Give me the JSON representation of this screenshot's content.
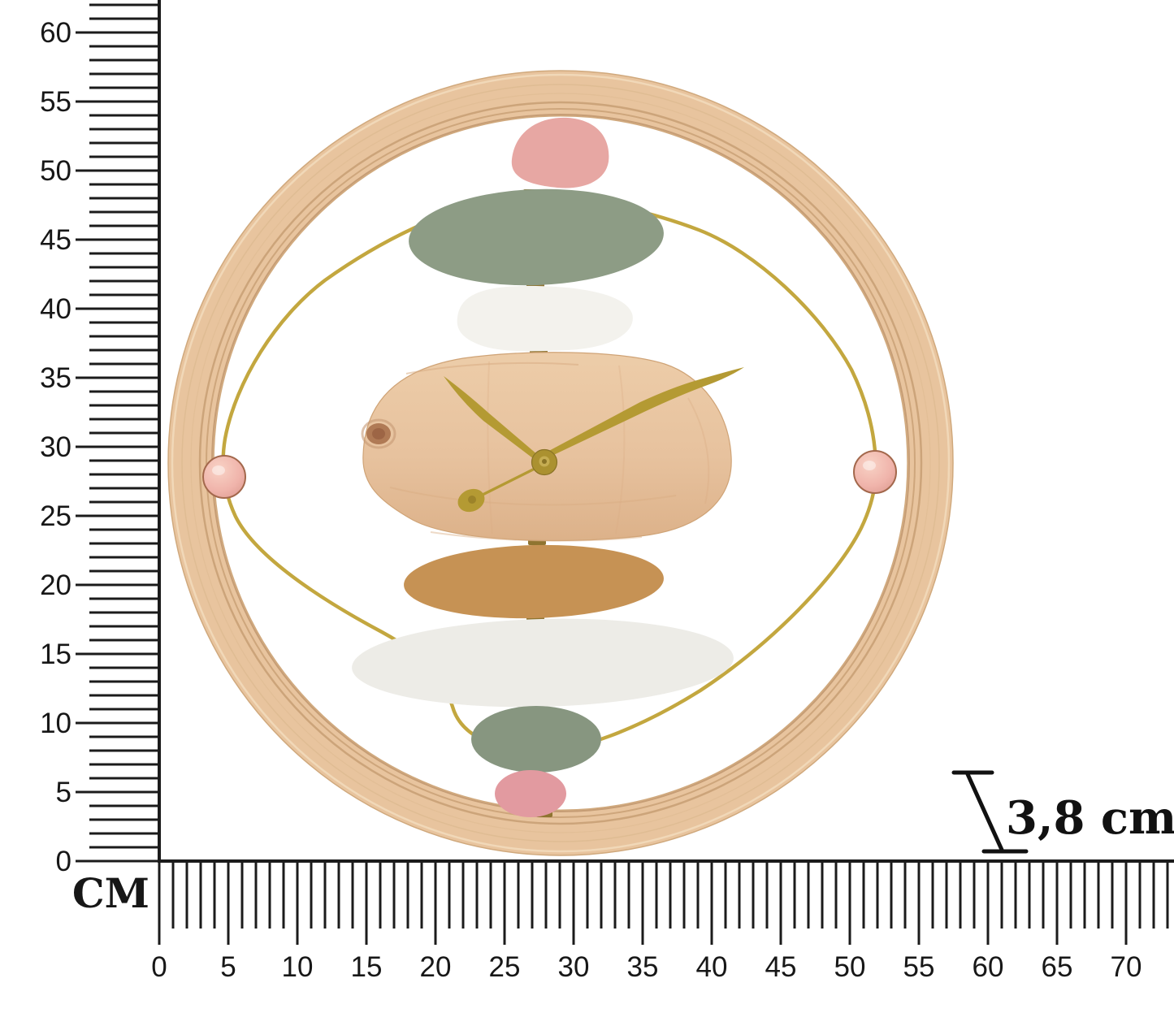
{
  "page": {
    "kind": "product dimension diagram",
    "product_name": "round wooden wall clock with stacked pebble decor"
  },
  "rulers": {
    "unit_label": "CM",
    "vertical": {
      "labels": [
        60,
        55,
        50,
        45,
        40,
        35,
        30,
        25,
        20,
        15,
        10,
        5,
        0
      ],
      "label_step_cm": 5,
      "minor_tick_max_cm": 62,
      "axis_min": 0,
      "axis_max": 62
    },
    "horizontal": {
      "labels": [
        0,
        5,
        10,
        15,
        20,
        25,
        30,
        35,
        40,
        45,
        50,
        55,
        60,
        65,
        70
      ],
      "label_step_cm": 5,
      "minor_tick_max_cm": 73,
      "axis_min": 0,
      "axis_max": 73
    },
    "line_color": "#1b1b1b"
  },
  "depth_annotation": {
    "label": "3,8 cm",
    "color": "#111111"
  },
  "clock": {
    "frame_color": "#e8c49e",
    "frame_groove_color": "#c9a176",
    "wire_color": "#c3a73f",
    "hands_color": "#b49a33",
    "hub_color": "#ab9130",
    "knob_color": "#f0b4ab",
    "face_wood_color": "#e7c29e",
    "knot_color": "#b07a55",
    "pebbles": [
      {
        "name": "pebble-pink-top",
        "color": "#e7a7a3"
      },
      {
        "name": "pebble-green-top",
        "color": "#8d9c85"
      },
      {
        "name": "pebble-white-top",
        "color": "#f3f2ed"
      },
      {
        "name": "clock-face-wood",
        "color": "#e7c29e"
      },
      {
        "name": "pebble-tan",
        "color": "#c69254"
      },
      {
        "name": "pebble-white-bottom",
        "color": "#edece7"
      },
      {
        "name": "pebble-green-bottom",
        "color": "#879680"
      },
      {
        "name": "pebble-pink-bottom",
        "color": "#e29aa0"
      }
    ],
    "connector_color": "#8f7430"
  }
}
